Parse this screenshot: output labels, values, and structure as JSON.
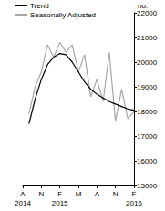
{
  "chart_data": {
    "type": "line",
    "categories": [
      "A\n2014",
      null,
      null,
      "N",
      null,
      null,
      "F\n2015",
      null,
      null,
      "M",
      null,
      null,
      "A",
      null,
      null,
      "N",
      null,
      null,
      "F\n2016"
    ],
    "series": [
      {
        "name": "Trend",
        "color": "#000000",
        "values": [
          null,
          17500,
          18500,
          19300,
          19900,
          20200,
          20350,
          20300,
          20000,
          19600,
          19200,
          18900,
          18700,
          18550,
          18400,
          18300,
          18200,
          18100,
          18050
        ]
      },
      {
        "name": "Seasonally Adjusted",
        "color": "#a6a6a6",
        "values": [
          null,
          17900,
          19000,
          19600,
          20700,
          20200,
          20800,
          20400,
          20700,
          19600,
          20300,
          18600,
          19300,
          18400,
          20400,
          17600,
          18900,
          17700,
          18000
        ]
      }
    ],
    "ylabel": "no.",
    "ylim": [
      15000,
      22000
    ],
    "yticks": [
      15000,
      16000,
      17000,
      18000,
      19000,
      20000,
      21000,
      22000
    ],
    "grid": false,
    "legend": "upper left"
  }
}
